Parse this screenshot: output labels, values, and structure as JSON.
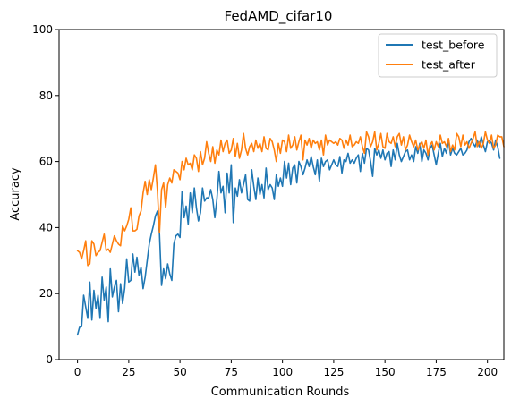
{
  "chart_data": {
    "type": "line",
    "title": "FedAMD_cifar10",
    "xlabel": "Communication Rounds",
    "ylabel": "Accuracy",
    "xlim": [
      -9,
      208
    ],
    "ylim": [
      0,
      100
    ],
    "xticks": [
      0,
      25,
      50,
      75,
      100,
      125,
      150,
      175,
      200
    ],
    "yticks": [
      0,
      20,
      40,
      60,
      80,
      100
    ],
    "grid": false,
    "legend_position": "top-right",
    "series": [
      {
        "name": "test_before",
        "color": "#1f77b4",
        "values": [
          7.5,
          9.8,
          10.0,
          19.5,
          16.0,
          12.5,
          23.5,
          12.0,
          21.0,
          15.5,
          19.5,
          12.5,
          25.0,
          18.0,
          22.0,
          11.5,
          27.5,
          19.0,
          22.0,
          24.0,
          14.5,
          23.0,
          17.0,
          21.5,
          30.5,
          23.5,
          24.0,
          32.0,
          26.5,
          31.0,
          25.5,
          28.0,
          21.5,
          25.0,
          30.0,
          35.0,
          38.0,
          40.5,
          43.5,
          45.0,
          38.0,
          22.5,
          27.5,
          24.5,
          29.0,
          26.0,
          24.0,
          35.0,
          37.5,
          38.0,
          37.0,
          51.0,
          43.0,
          46.5,
          41.0,
          50.5,
          44.5,
          52.0,
          46.0,
          42.0,
          44.5,
          52.0,
          48.0,
          49.0,
          49.0,
          51.5,
          48.5,
          43.0,
          48.5,
          57.0,
          50.5,
          52.5,
          44.5,
          56.5,
          50.5,
          59.0,
          41.5,
          52.0,
          49.5,
          54.5,
          50.5,
          53.0,
          56.0,
          48.5,
          48.0,
          57.5,
          52.5,
          48.5,
          55.0,
          50.0,
          53.0,
          49.0,
          58.0,
          51.5,
          53.0,
          52.0,
          48.5,
          56.0,
          52.5,
          55.0,
          52.5,
          60.0,
          55.0,
          59.5,
          53.0,
          58.0,
          59.0,
          53.5,
          60.0,
          58.5,
          56.0,
          58.0,
          60.5,
          58.5,
          61.5,
          58.5,
          56.0,
          60.5,
          54.0,
          61.0,
          58.5,
          60.0,
          60.5,
          57.5,
          59.0,
          60.5,
          59.0,
          58.5,
          61.5,
          56.5,
          60.5,
          60.0,
          62.5,
          59.5,
          60.5,
          59.5,
          61.0,
          62.0,
          57.0,
          62.5,
          59.5,
          64.0,
          63.5,
          60.0,
          55.5,
          64.0,
          62.0,
          63.5,
          61.0,
          63.5,
          60.5,
          62.5,
          63.0,
          58.5,
          63.5,
          60.5,
          65.5,
          62.0,
          60.0,
          61.5,
          63.0,
          63.5,
          60.5,
          62.0,
          60.0,
          64.5,
          62.5,
          65.5,
          60.0,
          63.5,
          62.5,
          60.5,
          64.0,
          65.0,
          62.0,
          59.0,
          62.5,
          65.5,
          61.5,
          64.0,
          62.5,
          66.5,
          62.0,
          64.0,
          62.5,
          62.0,
          63.0,
          64.0,
          62.0,
          62.5,
          63.5,
          66.0,
          67.0,
          65.5,
          64.5,
          66.5,
          64.5,
          67.5,
          65.0,
          63.0,
          66.0,
          66.5,
          65.5,
          63.5,
          66.5,
          64.5,
          61.0
        ]
      },
      {
        "name": "test_after",
        "color": "#ff7f0e",
        "values": [
          33.0,
          32.5,
          30.5,
          33.0,
          36.0,
          28.5,
          29.0,
          36.0,
          35.0,
          31.5,
          32.5,
          33.0,
          35.5,
          38.0,
          33.0,
          33.5,
          32.5,
          35.0,
          37.5,
          36.0,
          35.0,
          34.5,
          40.5,
          39.0,
          40.5,
          42.5,
          46.0,
          39.0,
          39.0,
          39.5,
          43.5,
          45.0,
          50.5,
          54.0,
          50.0,
          54.5,
          51.5,
          55.0,
          59.0,
          51.0,
          38.5,
          51.5,
          53.5,
          46.0,
          53.0,
          55.0,
          53.5,
          57.5,
          57.0,
          56.5,
          54.5,
          60.0,
          57.5,
          61.0,
          59.0,
          59.5,
          57.5,
          62.0,
          61.0,
          57.0,
          63.0,
          59.0,
          61.0,
          66.0,
          62.5,
          60.0,
          64.5,
          59.5,
          63.5,
          62.0,
          66.5,
          63.0,
          65.5,
          66.5,
          62.5,
          63.5,
          67.0,
          61.5,
          65.5,
          61.0,
          63.5,
          68.5,
          64.0,
          62.0,
          64.5,
          65.5,
          63.0,
          66.5,
          64.0,
          65.5,
          63.0,
          67.5,
          64.0,
          63.5,
          67.0,
          66.0,
          63.5,
          60.0,
          65.5,
          62.5,
          66.5,
          66.0,
          63.0,
          68.0,
          64.0,
          65.0,
          67.5,
          63.5,
          66.0,
          68.0,
          60.5,
          66.5,
          65.0,
          67.0,
          64.0,
          66.5,
          65.5,
          66.0,
          63.5,
          66.5,
          62.0,
          68.0,
          65.0,
          66.5,
          66.0,
          65.5,
          66.0,
          65.0,
          67.0,
          66.5,
          64.0,
          66.5,
          65.0,
          68.0,
          64.5,
          65.0,
          66.0,
          65.5,
          67.5,
          64.5,
          62.5,
          69.0,
          67.5,
          64.5,
          66.0,
          69.0,
          63.5,
          65.5,
          68.5,
          64.5,
          64.0,
          68.5,
          66.0,
          65.5,
          67.5,
          64.5,
          67.5,
          68.5,
          65.0,
          67.5,
          63.5,
          65.0,
          68.0,
          66.0,
          64.5,
          66.5,
          63.5,
          65.0,
          66.0,
          64.0,
          66.5,
          62.0,
          65.0,
          66.0,
          63.5,
          66.0,
          64.5,
          68.0,
          65.5,
          66.0,
          64.5,
          67.0,
          63.0,
          65.0,
          63.5,
          68.5,
          67.5,
          64.5,
          68.0,
          65.0,
          66.0,
          64.0,
          65.5,
          67.0,
          69.0,
          64.5,
          66.0,
          64.0,
          65.5,
          69.0,
          66.5,
          65.5,
          68.0,
          64.0,
          65.0,
          68.0,
          67.5,
          67.5,
          64.5
        ]
      }
    ]
  }
}
